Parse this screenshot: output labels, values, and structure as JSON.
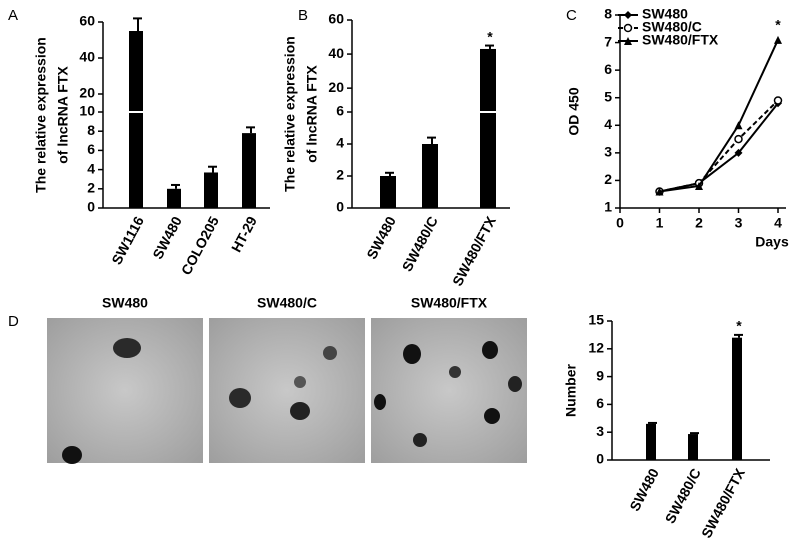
{
  "chart_data": [
    {
      "panel_label": "A",
      "type": "bar",
      "ylabel": [
        "The relative expression",
        "of lncRNA FTX"
      ],
      "categories": [
        "SW1116",
        "SW480",
        "COLO205",
        "HT-29"
      ],
      "values": [
        55,
        2,
        3.7,
        7.8
      ],
      "errors": [
        7,
        0.4,
        0.6,
        0.6
      ],
      "color": "#000000",
      "segments": [
        {
          "ylim": [
            0,
            10
          ],
          "yticks": [
            0,
            2,
            4,
            6,
            8,
            10
          ]
        },
        {
          "ylim": [
            10,
            60
          ],
          "yticks": [
            20,
            40,
            60
          ]
        }
      ]
    },
    {
      "panel_label": "B",
      "type": "bar",
      "ylabel": [
        "The relative expression",
        "of lncRNA FTX"
      ],
      "categories": [
        "SW480",
        "SW480/C",
        "SW480/FTX"
      ],
      "values": [
        2,
        4,
        43
      ],
      "errors": [
        0.2,
        0.4,
        2
      ],
      "color": "#000000",
      "segments": [
        {
          "ylim": [
            0,
            6
          ],
          "yticks": [
            0,
            2,
            4,
            6
          ]
        },
        {
          "ylim": [
            6,
            60
          ],
          "yticks": [
            20,
            40,
            60
          ]
        }
      ],
      "annotation": "*",
      "annotation_category": "SW480/FTX"
    },
    {
      "panel_label": "C",
      "type": "line",
      "xlabel": "Days",
      "ylabel": "OD 450",
      "x": [
        1,
        2,
        3,
        4
      ],
      "xlim": [
        0,
        4
      ],
      "xticks": [
        0,
        1,
        2,
        3,
        4
      ],
      "ylim": [
        1,
        8
      ],
      "yticks": [
        1,
        2,
        3,
        4,
        5,
        6,
        7,
        8
      ],
      "series": [
        {
          "name": "SW480",
          "color": "#000000",
          "style": "solid",
          "values": [
            1.6,
            1.9,
            3.0,
            4.8
          ]
        },
        {
          "name": "SW480/C",
          "color": "#000000",
          "style": "dashed",
          "values": [
            1.6,
            1.9,
            3.5,
            4.9
          ]
        },
        {
          "name": "SW480/FTX",
          "color": "#000000",
          "style": "solid",
          "values": [
            1.6,
            1.8,
            4.0,
            7.1
          ]
        }
      ],
      "annotation": "*",
      "annotation_x": 4
    },
    {
      "panel_label": "D",
      "type": "bar",
      "ylabel": "Number",
      "categories": [
        "SW480",
        "SW480/C",
        "SW480/FTX"
      ],
      "values": [
        3.9,
        2.8,
        13.2
      ],
      "errors": [
        0.1,
        0.1,
        0.3
      ],
      "color": "#000000",
      "ylim": [
        0,
        15
      ],
      "yticks": [
        0,
        3,
        6,
        9,
        12,
        15
      ],
      "annotation": "*",
      "annotation_category": "SW480/FTX"
    }
  ],
  "images": {
    "labels": [
      "SW480",
      "SW480/C",
      "SW480/FTX"
    ]
  }
}
